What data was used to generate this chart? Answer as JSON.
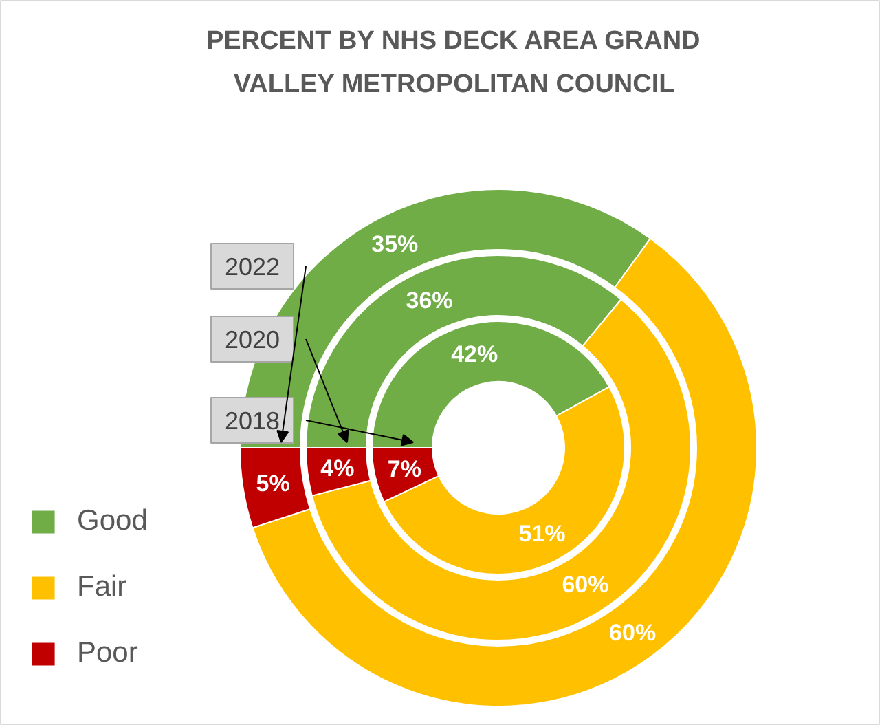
{
  "chart_data": {
    "type": "donut",
    "title": "PERCENT BY NHS DECK AREA GRAND\nVALLEY METROPOLITAN COUNCIL",
    "categories": [
      "Good",
      "Fair",
      "Poor"
    ],
    "colors": [
      "#70ad47",
      "#ffc000",
      "#c00000"
    ],
    "series": [
      {
        "name": "2018",
        "values": [
          42,
          51,
          7
        ],
        "value_labels": [
          "42%",
          "51%",
          "7%"
        ]
      },
      {
        "name": "2020",
        "values": [
          36,
          60,
          4
        ],
        "value_labels": [
          "36%",
          "60%",
          "4%"
        ]
      },
      {
        "name": "2022",
        "values": [
          35,
          60,
          5
        ],
        "value_labels": [
          "35%",
          "60%",
          "5%"
        ]
      }
    ],
    "legend": "left"
  }
}
